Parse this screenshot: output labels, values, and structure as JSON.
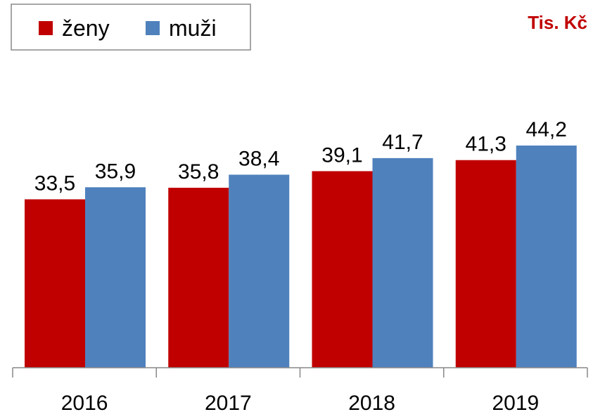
{
  "chart_data": {
    "type": "bar",
    "annotation": "Tis. Kč",
    "categories": [
      "2016",
      "2017",
      "2018",
      "2019"
    ],
    "series": [
      {
        "name": "ženy",
        "color": "#c00000",
        "values": [
          33.5,
          35.8,
          39.1,
          41.3
        ],
        "value_labels": [
          "33,5",
          "35,8",
          "39,1",
          "41,3"
        ]
      },
      {
        "name": "muži",
        "color": "#4f81bd",
        "values": [
          35.9,
          38.4,
          41.7,
          44.2
        ],
        "value_labels": [
          "35,9",
          "38,4",
          "41,7",
          "44,2"
        ]
      }
    ],
    "legend": "top-left"
  }
}
